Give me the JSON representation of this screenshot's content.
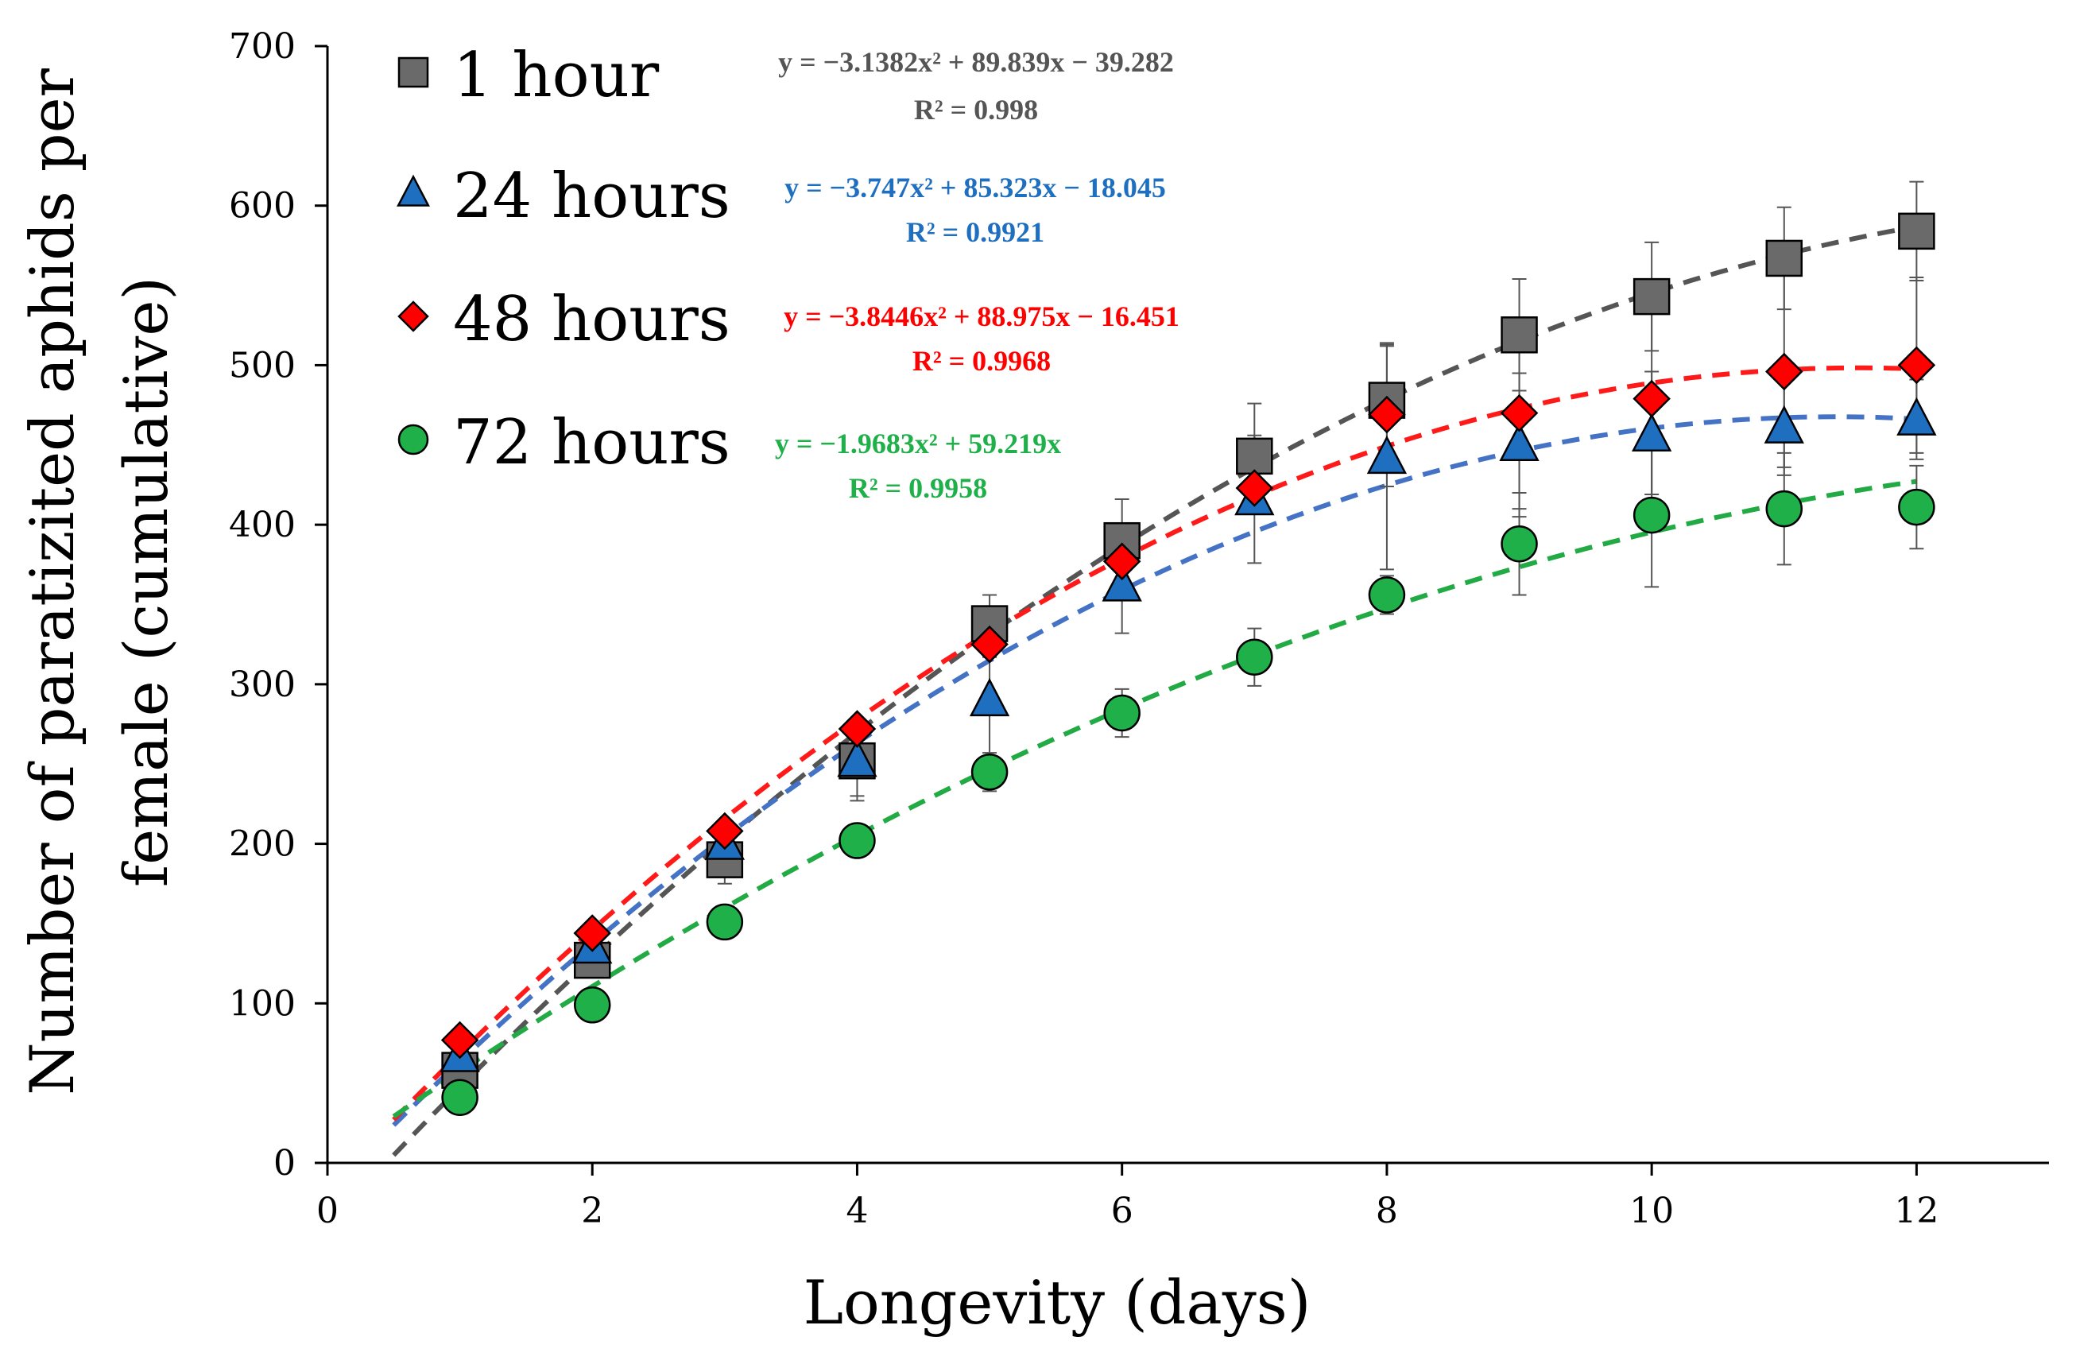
{
  "chart_data": {
    "type": "scatter",
    "title": "",
    "xlabel": "Longevity (days)",
    "ylabel_line1": "Number of paratizited aphids per",
    "ylabel_line2": "female (cumulative)",
    "xlim": [
      0,
      13
    ],
    "ylim": [
      0,
      700
    ],
    "xticks": [
      0,
      2,
      4,
      6,
      8,
      10,
      12
    ],
    "yticks": [
      0,
      100,
      200,
      300,
      400,
      500,
      600,
      700
    ],
    "x": [
      1,
      2,
      3,
      4,
      5,
      6,
      7,
      8,
      9,
      10,
      11,
      12
    ],
    "legend_position": "top-left",
    "series": [
      {
        "name": "1 hour",
        "marker": "square",
        "color": "#6a6a6a",
        "line_color": "#555555",
        "values": [
          58,
          127,
          190,
          252,
          338,
          390,
          443,
          478,
          519,
          543,
          567,
          584
        ],
        "errors": [
          10,
          10,
          15,
          22,
          18,
          26,
          33,
          35,
          35,
          34,
          32,
          31
        ],
        "fit": {
          "a": -3.1382,
          "b": 89.839,
          "c": -39.282
        },
        "equation": "y = −3.1382x² + 89.839x − 39.282",
        "r2": "R² = 0.998"
      },
      {
        "name": "24 hours",
        "marker": "triangle",
        "color": "#1f6fc0",
        "line_color": "#4472c4",
        "values": [
          67,
          135,
          200,
          252,
          290,
          362,
          416,
          442,
          450,
          456,
          461,
          466
        ],
        "errors": [
          8,
          10,
          10,
          25,
          35,
          30,
          40,
          70,
          45,
          40,
          30,
          25
        ],
        "fit": {
          "a": -3.747,
          "b": 85.323,
          "c": -18.045
        },
        "equation": "y = −3.747x² + 85.323x − 18.045",
        "r2": "R² = 0.9921"
      },
      {
        "name": "48 hours",
        "marker": "diamond",
        "color": "#ff0000",
        "line_color": "#ff1a1a",
        "values": [
          77,
          144,
          208,
          272,
          325,
          377,
          423,
          469,
          470,
          479,
          496,
          500
        ],
        "errors": [
          6,
          6,
          6,
          6,
          8,
          10,
          12,
          45,
          60,
          60,
          60,
          55
        ],
        "fit": {
          "a": -3.8446,
          "b": 88.975,
          "c": -16.451
        },
        "equation": "y = −3.8446x² + 88.975x − 16.451",
        "r2": "R² = 0.9968"
      },
      {
        "name": "72 hours",
        "marker": "circle",
        "color": "#1fb04a",
        "line_color": "#22aa44",
        "values": [
          41,
          99,
          151,
          202,
          245,
          282,
          317,
          356,
          388,
          406,
          410,
          411
        ],
        "errors": [
          5,
          5,
          10,
          10,
          12,
          15,
          18,
          12,
          32,
          45,
          35,
          26
        ],
        "fit": {
          "a": -1.9683,
          "b": 59.219,
          "c": 0
        },
        "equation": "y = −1.9683x² + 59.219x",
        "r2": "R² = 0.9958"
      }
    ]
  }
}
